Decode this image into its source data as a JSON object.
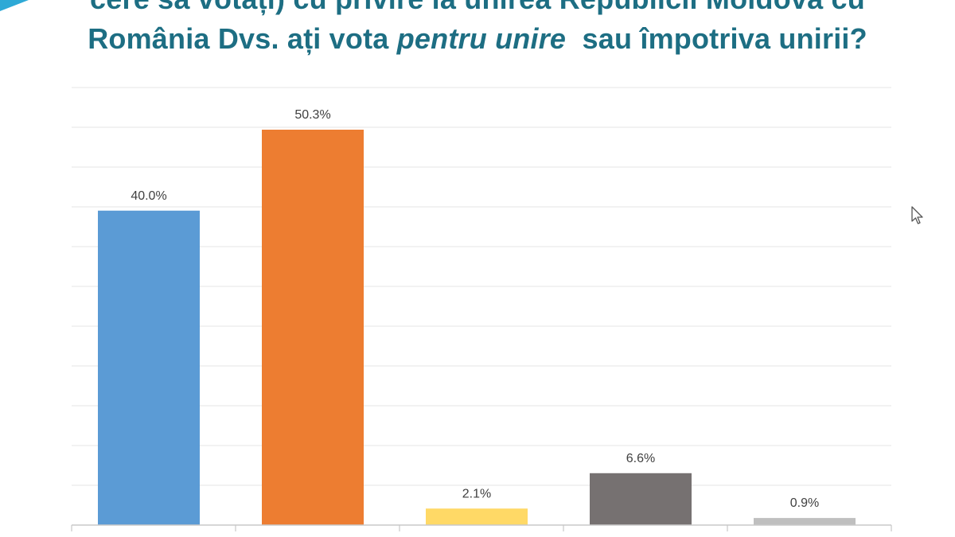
{
  "title": {
    "line1": "cere să votați) cu privire la unirea Republicii Moldova cu",
    "line2_a": "România Dvs. ați vota ",
    "line2_emph": "pentru unire",
    "line2_b": "  sau împotriva unirii?"
  },
  "colors": {
    "title": "#1d6e83",
    "grid": "#e6e6e6",
    "axis": "#c8c8c8",
    "label": "#404040"
  },
  "icons": [
    "mouse-pointer-icon"
  ],
  "chart_data": {
    "type": "bar",
    "title": "",
    "xlabel": "",
    "ylabel": "",
    "categories": [
      "",
      "",
      "",
      "",
      ""
    ],
    "values": [
      40.0,
      50.3,
      2.1,
      6.6,
      0.9
    ],
    "labels": [
      "40.0%",
      "50.3%",
      "2.1%",
      "6.6%",
      "0.9%"
    ],
    "colors": [
      "#5b9bd5",
      "#ed7d31",
      "#ffd966",
      "#767171",
      "#bfbfbf"
    ],
    "ylim": [
      0,
      55
    ],
    "grid": true,
    "legend": "none"
  }
}
